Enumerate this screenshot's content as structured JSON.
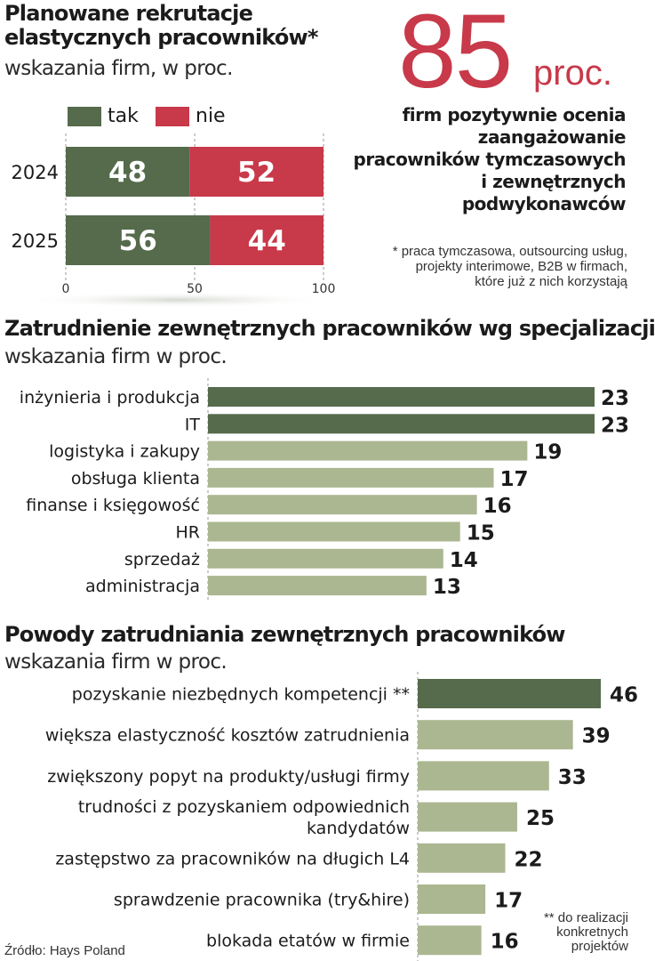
{
  "header": {
    "title_line1": "Planowane rekrutacje",
    "title_line2": "elastycznych pracowników*",
    "subtitle": "wskazania firm, w proc."
  },
  "kpi": {
    "value": "85",
    "unit": "proc.",
    "text_lines": [
      "firm pozytywnie ocenia",
      "zaangażowanie",
      "pracowników tymczasowych",
      "i zewnętrznych",
      "podwykonawców"
    ]
  },
  "footnote1_lines": [
    "* praca tymczasowa, outsourcing usług,",
    "projekty interimowe, B2B w firmach,",
    "które już z nich korzystają"
  ],
  "footnote2_lines": [
    "** do realizacji",
    "konkretnych",
    "projektów"
  ],
  "source": "Źródło: Hays Poland",
  "section2": {
    "title": "Zatrudnienie zewnętrznych pracowników wg specjalizacji",
    "subtitle": "wskazania firm w proc."
  },
  "section3": {
    "title": "Powody zatrudniania zewnętrznych pracowników",
    "subtitle": "wskazania firm w proc."
  },
  "colors": {
    "dark_green": "#556b4c",
    "light_green": "#abb791",
    "red": "#c8394a",
    "text": "#1b1b1b"
  },
  "chart_data": [
    {
      "type": "bar",
      "orientation": "horizontal-stacked",
      "categories": [
        "2024",
        "2025"
      ],
      "series": [
        {
          "name": "tak",
          "values": [
            48,
            56
          ],
          "color": "#556b4c"
        },
        {
          "name": "nie",
          "values": [
            52,
            44
          ],
          "color": "#c8394a"
        }
      ],
      "xticks": [
        "0",
        "50",
        "100"
      ],
      "xlim": [
        0,
        100
      ],
      "legend": "top"
    },
    {
      "type": "bar",
      "orientation": "horizontal",
      "categories": [
        "inżynieria i produkcja",
        "IT",
        "logistyka i zakupy",
        "obsługa klienta",
        "finanse i księgowość",
        "HR",
        "sprzedaż",
        "administracja"
      ],
      "values": [
        23,
        23,
        19,
        17,
        16,
        15,
        14,
        13
      ],
      "highlight": [
        true,
        true,
        false,
        false,
        false,
        false,
        false,
        false
      ]
    },
    {
      "type": "bar",
      "orientation": "horizontal",
      "categories": [
        [
          "pozyskanie niezbędnych kompetencji **"
        ],
        [
          "większa elastyczność kosztów zatrudnienia"
        ],
        [
          "zwiększony popyt na produkty/usługi firmy"
        ],
        [
          "trudności z pozyskaniem odpowiednich",
          "kandydatów"
        ],
        [
          "zastępstwo za pracowników na długich L4"
        ],
        [
          "sprawdzenie pracownika (try&hire)"
        ],
        [
          "blokada etatów w firmie"
        ]
      ],
      "values": [
        46,
        39,
        33,
        25,
        22,
        17,
        16
      ],
      "highlight": [
        true,
        false,
        false,
        false,
        false,
        false,
        false
      ]
    }
  ]
}
